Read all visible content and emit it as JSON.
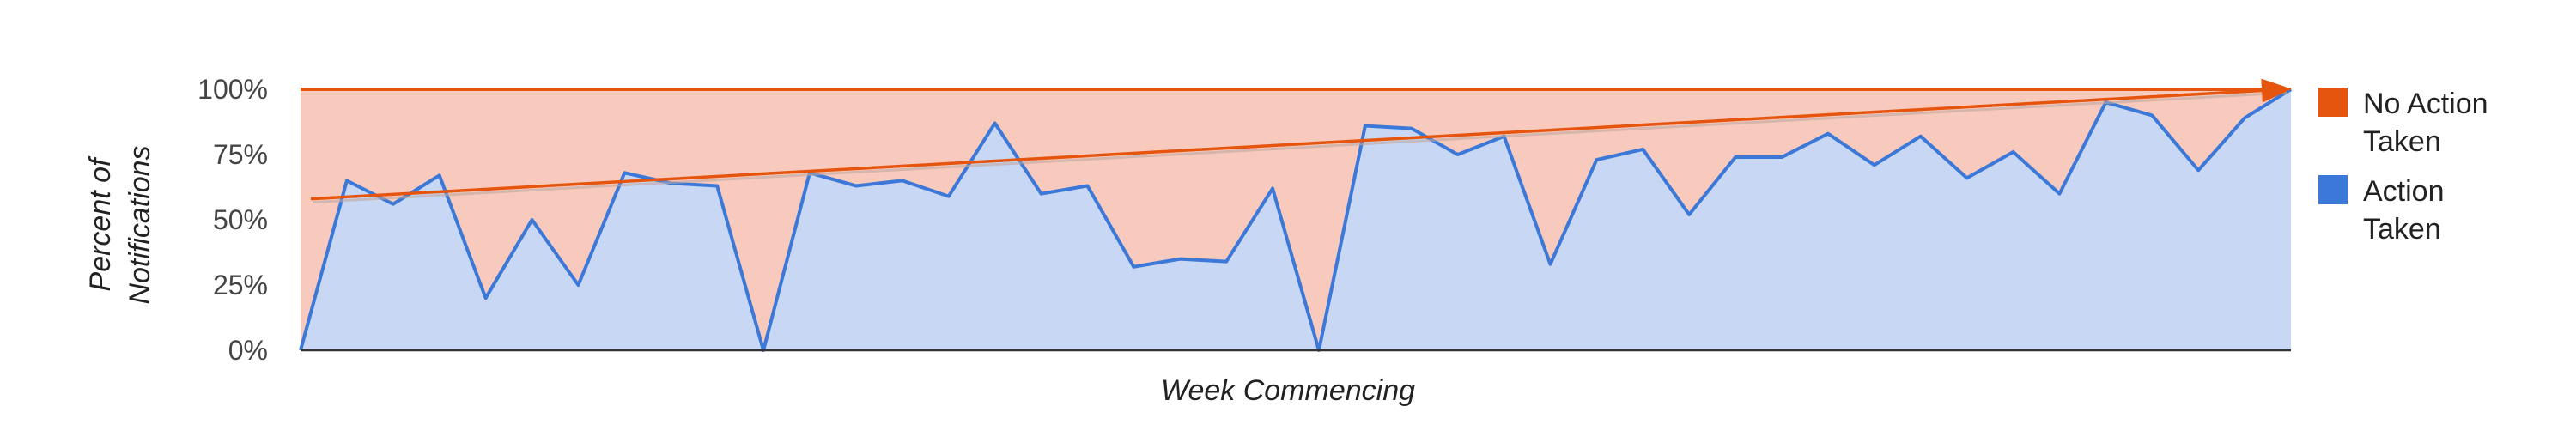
{
  "chart_data": {
    "type": "area",
    "title": "",
    "xlabel": "Week Commencing",
    "ylabel": "Percent of Notifications",
    "ylim": [
      0,
      100
    ],
    "y_ticks": [
      "0%",
      "25%",
      "50%",
      "75%",
      "100%"
    ],
    "y_tick_values": [
      0,
      25,
      50,
      75,
      100
    ],
    "stacked": true,
    "grid": true,
    "legend_position": "right",
    "series": [
      {
        "name": "No Action Taken",
        "color": "#e6550d",
        "values": [
          100,
          35,
          44,
          33,
          80,
          50,
          75,
          32,
          36,
          37,
          100,
          32,
          37,
          35,
          41,
          13,
          40,
          37,
          68,
          65,
          66,
          38,
          100,
          14,
          15,
          25,
          18,
          67,
          27,
          23,
          48,
          26,
          26,
          17,
          29,
          18,
          34,
          24,
          40,
          5,
          10,
          31,
          11,
          0
        ]
      },
      {
        "name": "Action Taken",
        "color": "#3c78d8",
        "values": [
          0,
          65,
          56,
          67,
          20,
          50,
          25,
          68,
          64,
          63,
          0,
          68,
          63,
          65,
          59,
          87,
          60,
          63,
          32,
          35,
          34,
          62,
          0,
          86,
          85,
          75,
          82,
          33,
          73,
          77,
          52,
          74,
          74,
          83,
          71,
          82,
          66,
          76,
          60,
          95,
          90,
          69,
          89,
          100
        ]
      }
    ],
    "trendline": {
      "color": "#e6550d",
      "start": 58,
      "end": 100,
      "arrow": true
    }
  },
  "legend": [
    {
      "name_line1": "No Action",
      "name_line2": "Taken",
      "color": "#e6550d"
    },
    {
      "name_line1": "Action",
      "name_line2": "Taken",
      "color": "#3c78d8"
    }
  ]
}
